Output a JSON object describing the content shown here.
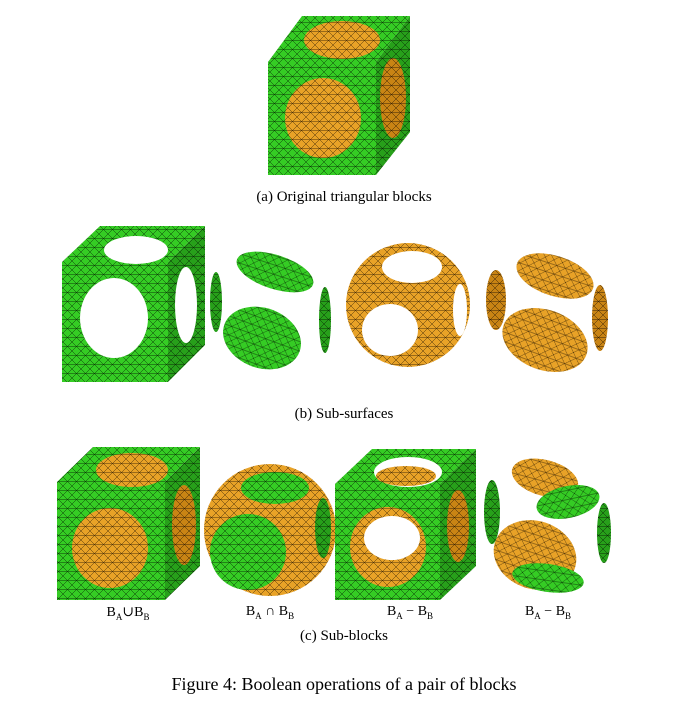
{
  "figure": {
    "caption": "Figure 4: Boolean operations of a pair of blocks",
    "panel_a": {
      "label": "(a)  Original triangular blocks"
    },
    "panel_b": {
      "label": "(b)  Sub-surfaces"
    },
    "panel_c": {
      "label": "(c)  Sub-blocks",
      "operations": [
        {
          "left": "B",
          "left_sub": "A",
          "op": "∪",
          "right": "B",
          "right_sub": "B"
        },
        {
          "left": "B",
          "left_sub": "A",
          "op": " ∩ ",
          "right": "B",
          "right_sub": "B"
        },
        {
          "left": "B",
          "left_sub": "A",
          "op": " − ",
          "right": "B",
          "right_sub": "B"
        },
        {
          "left": "B",
          "left_sub": "A",
          "op": " − ",
          "right": "B",
          "right_sub": "B"
        }
      ]
    }
  },
  "colors": {
    "green": "#33cc22",
    "orange": "#e8a227",
    "mesh": "#1a1a1a"
  }
}
